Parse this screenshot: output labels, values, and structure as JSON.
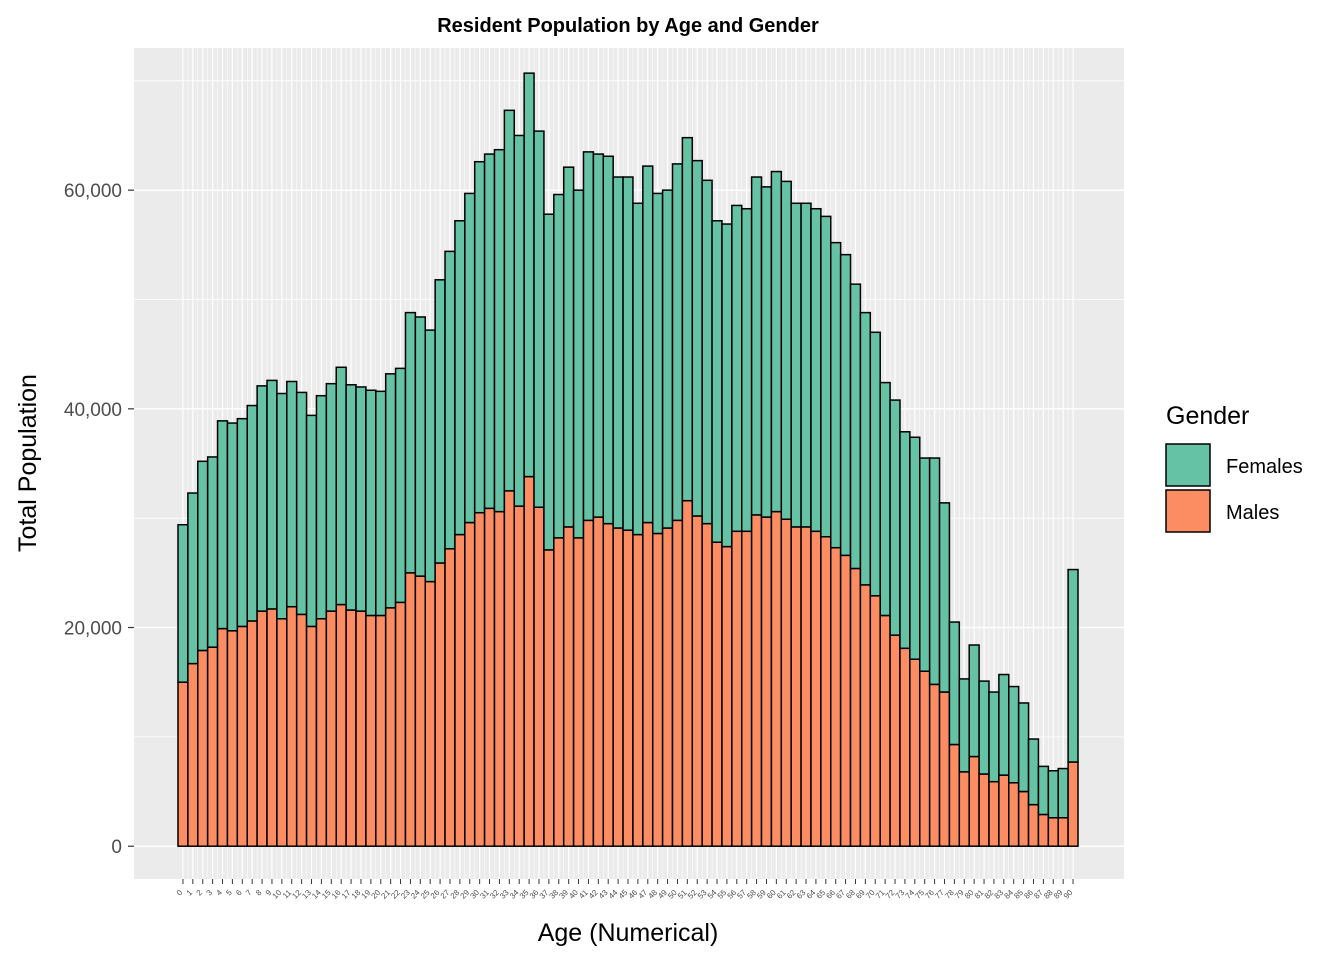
{
  "chart_data": {
    "type": "bar",
    "stacked": true,
    "title": "Resident Population by Age and Gender",
    "xlabel": "Age (Numerical)",
    "ylabel": "Total Population",
    "ylim": [
      -3000,
      73000
    ],
    "yticks": [
      0,
      20000,
      40000,
      60000
    ],
    "ytick_labels": [
      "0",
      "20,000",
      "40,000",
      "60,000"
    ],
    "grid": true,
    "legend": {
      "title": "Gender",
      "position": "right"
    },
    "categories": [
      "0",
      "1",
      "2",
      "3",
      "4",
      "5",
      "6",
      "7",
      "8",
      "9",
      "10",
      "11",
      "12",
      "13",
      "14",
      "15",
      "16",
      "17",
      "18",
      "19",
      "20",
      "21",
      "22",
      "23",
      "24",
      "25",
      "26",
      "27",
      "28",
      "29",
      "30",
      "31",
      "32",
      "33",
      "34",
      "35",
      "36",
      "37",
      "38",
      "39",
      "40",
      "41",
      "42",
      "43",
      "44",
      "45",
      "46",
      "47",
      "48",
      "49",
      "50",
      "51",
      "52",
      "53",
      "54",
      "55",
      "56",
      "57",
      "58",
      "59",
      "60",
      "61",
      "62",
      "63",
      "64",
      "65",
      "66",
      "67",
      "68",
      "69",
      "70",
      "71",
      "72",
      "73",
      "74",
      "75",
      "76",
      "77",
      "78",
      "79",
      "80",
      "81",
      "82",
      "83",
      "84",
      "85",
      "86",
      "87",
      "88",
      "89",
      "90"
    ],
    "series": [
      {
        "name": "Males",
        "color": "#FC8D62",
        "values": [
          15000,
          16700,
          17900,
          18200,
          19900,
          19700,
          20100,
          20600,
          21500,
          21700,
          20800,
          21900,
          21200,
          20100,
          20800,
          21500,
          22100,
          21600,
          21500,
          21100,
          21100,
          21800,
          22300,
          25000,
          24700,
          24200,
          25900,
          27200,
          28500,
          29600,
          30500,
          30900,
          30600,
          32500,
          31100,
          33800,
          31000,
          27100,
          28200,
          29200,
          28200,
          29800,
          30100,
          29500,
          29100,
          28900,
          28500,
          29600,
          28600,
          29100,
          29800,
          31600,
          30200,
          29500,
          27800,
          27400,
          28800,
          28800,
          30300,
          30100,
          30600,
          29900,
          29200,
          29200,
          28800,
          28300,
          27300,
          26600,
          25400,
          23900,
          22900,
          21100,
          19300,
          18100,
          17100,
          16000,
          14800,
          14100,
          9300,
          6800,
          8200,
          6600,
          5900,
          6500,
          5800,
          5000,
          3800,
          2900,
          2600,
          2600,
          7700
        ]
      },
      {
        "name": "Females",
        "color": "#66C2A5",
        "values": [
          14400,
          15600,
          17300,
          17400,
          19000,
          19000,
          19000,
          19700,
          20600,
          20900,
          20600,
          20600,
          20300,
          19300,
          20400,
          20800,
          21700,
          20600,
          20500,
          20600,
          20500,
          21400,
          21400,
          23800,
          23700,
          23000,
          25900,
          27200,
          28700,
          30100,
          32100,
          32400,
          33100,
          34800,
          33900,
          36900,
          34400,
          30700,
          31400,
          32900,
          31800,
          33700,
          33200,
          33600,
          32100,
          32300,
          30300,
          32600,
          31100,
          30900,
          32600,
          33200,
          32500,
          31400,
          29400,
          29500,
          29800,
          29500,
          30900,
          30200,
          31100,
          30900,
          29600,
          29600,
          29500,
          29300,
          27900,
          27500,
          26000,
          24900,
          24100,
          21300,
          21500,
          19800,
          20300,
          19500,
          20700,
          17300,
          11200,
          8500,
          10200,
          8500,
          8200,
          9200,
          8800,
          8100,
          6000,
          4400,
          4300,
          4500,
          17600
        ]
      }
    ]
  }
}
